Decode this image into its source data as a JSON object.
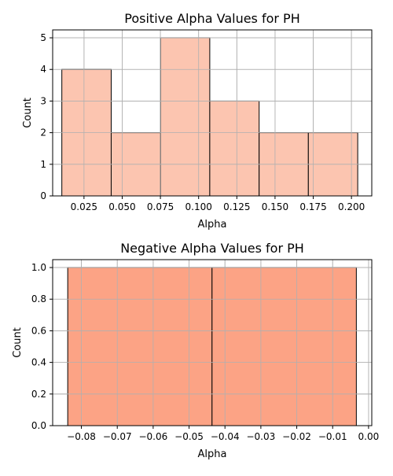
{
  "chart_data": [
    {
      "type": "bar",
      "title": "Positive Alpha Values for PH",
      "xlabel": "Alpha",
      "ylabel": "Count",
      "xlim": [
        0.0045,
        0.2133
      ],
      "ylim": [
        0,
        5.25
      ],
      "xticks": [
        0.025,
        0.05,
        0.075,
        0.1,
        0.125,
        0.15,
        0.175,
        0.2
      ],
      "xtick_labels": [
        "0.025",
        "0.050",
        "0.075",
        "0.100",
        "0.125",
        "0.150",
        "0.175",
        "0.200"
      ],
      "yticks": [
        0,
        1,
        2,
        3,
        4,
        5
      ],
      "ytick_labels": [
        "0",
        "1",
        "2",
        "3",
        "4",
        "5"
      ],
      "grid": true,
      "bar_color": "#fcc5b0",
      "bins": [
        {
          "x0": 0.0105,
          "x1": 0.0428,
          "value": 4
        },
        {
          "x0": 0.0428,
          "x1": 0.0751,
          "value": 2
        },
        {
          "x0": 0.0751,
          "x1": 0.1073,
          "value": 5
        },
        {
          "x0": 0.1073,
          "x1": 0.1396,
          "value": 3
        },
        {
          "x0": 0.1396,
          "x1": 0.1718,
          "value": 2
        },
        {
          "x0": 0.1718,
          "x1": 0.2041,
          "value": 2
        }
      ]
    },
    {
      "type": "bar",
      "title": "Negative Alpha Values for PH",
      "xlabel": "Alpha",
      "ylabel": "Count",
      "xlim": [
        -0.088,
        0.0009
      ],
      "ylim": [
        0,
        1.05
      ],
      "xticks": [
        -0.08,
        -0.07,
        -0.06,
        -0.05,
        -0.04,
        -0.03,
        -0.02,
        -0.01,
        0.0
      ],
      "xtick_labels": [
        "−0.08",
        "−0.07",
        "−0.06",
        "−0.05",
        "−0.04",
        "−0.03",
        "−0.02",
        "−0.01",
        "0.00"
      ],
      "yticks": [
        0.0,
        0.2,
        0.4,
        0.6,
        0.8,
        1.0
      ],
      "ytick_labels": [
        "0.0",
        "0.2",
        "0.4",
        "0.6",
        "0.8",
        "1.0"
      ],
      "grid": true,
      "bar_color": "#fca385",
      "bins": [
        {
          "x0": -0.0838,
          "x1": -0.0436,
          "value": 1
        },
        {
          "x0": -0.0436,
          "x1": -0.0034,
          "value": 1
        }
      ]
    }
  ]
}
